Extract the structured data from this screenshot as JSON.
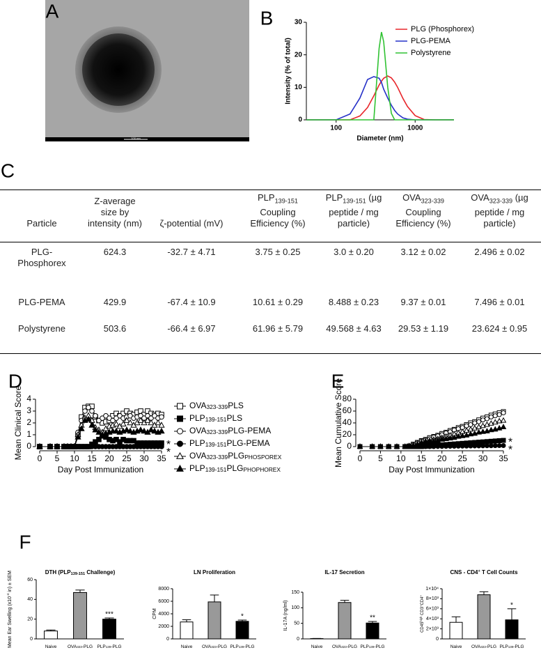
{
  "panel_labels": [
    "A",
    "B",
    "C",
    "D",
    "E",
    "F"
  ],
  "image_a": {
    "scale_bar": "100 nm"
  },
  "table": {
    "header": [
      [
        "Particle"
      ],
      [
        "Z-average size by intensity (nm)"
      ],
      [
        "ζ-potential (mV)"
      ],
      [
        "PLP",
        {
          "sub": "139-151"
        },
        " Coupling Efficiency (%)"
      ],
      [
        "PLP",
        {
          "sub": "139-151"
        },
        " (µg peptide / mg particle)"
      ],
      [
        "OVA",
        {
          "sub": "323-339"
        },
        " Coupling Efficiency (%)"
      ],
      [
        "OVA",
        {
          "sub": "323-339"
        },
        " (µg peptide / mg particle)"
      ]
    ],
    "rows": [
      [
        "PLG-Phosphorex",
        "624.3",
        "-32.7 ± 4.71",
        "3.75 ± 0.25",
        "3.0 ± 0.20",
        "3.12 ± 0.02",
        "2.496 ± 0.02"
      ],
      [
        "PLG-PEMA",
        "429.9",
        "-67.4 ± 10.9",
        "10.61 ± 0.29",
        "8.488 ± 0.23",
        "9.37 ± 0.01",
        "7.496 ± 0.01"
      ],
      [
        "Polystyrene",
        "503.6",
        "-66.4 ± 6.97",
        "61.96 ± 5.79",
        "49.568 ± 4.63",
        "29.53 ± 1.19",
        "23.624 ± 0.95"
      ]
    ]
  },
  "chart_data": [
    {
      "type": "line",
      "xlabel": "Diameter (nm)",
      "ylabel": "Intensity (% of total)",
      "xscale": "log",
      "xlim": [
        42,
        3100
      ],
      "xticks": [
        100,
        1000
      ],
      "ylim": [
        0,
        30
      ],
      "yticks": [
        0,
        10,
        20,
        30
      ],
      "legend": "top-right",
      "x": [
        42,
        100,
        150,
        200,
        250,
        300,
        350,
        375,
        400,
        450,
        500,
        550,
        600,
        700,
        800,
        1000,
        1300,
        1800,
        3100
      ],
      "series": [
        {
          "name": "PLG (Phosphorex)",
          "color": "#e8262b",
          "values": [
            0,
            0,
            0,
            1.2,
            3.8,
            7.4,
            10.7,
            11.9,
            12.8,
            13.5,
            12.9,
            11.6,
            10,
            6.6,
            4.1,
            1.3,
            0.1,
            0,
            0
          ]
        },
        {
          "name": "PLG-PEMA",
          "color": "#2530c8",
          "values": [
            0,
            0,
            1.8,
            6.7,
            12.4,
            13.3,
            12.8,
            11.5,
            9.4,
            6.7,
            4.5,
            2.9,
            1.8,
            0.6,
            0.2,
            0,
            0,
            0,
            0
          ]
        },
        {
          "name": "Polystyrene",
          "color": "#2fc232",
          "values": [
            0,
            0,
            0,
            0,
            0,
            0,
            22,
            27,
            24,
            10,
            2,
            0,
            0,
            0,
            0,
            0,
            0,
            0,
            0
          ]
        }
      ]
    },
    {
      "type": "line",
      "xlabel": "Day Post Immunization",
      "ylabel": "Mean Clinical Score",
      "xlim": [
        0,
        35
      ],
      "xticks": [
        0,
        5,
        10,
        15,
        20,
        25,
        30,
        35
      ],
      "ylim": [
        0,
        4
      ],
      "yticks": [
        0,
        1,
        2,
        3,
        4
      ],
      "legend": "right",
      "x": [
        0,
        3,
        5,
        7,
        8,
        9,
        10,
        11,
        12,
        13,
        14,
        15,
        16,
        17,
        18,
        19,
        20,
        21,
        22,
        23,
        24,
        25,
        26,
        27,
        28,
        29,
        30,
        31,
        32,
        33,
        34,
        35
      ],
      "series": [
        {
          "name": [
            "OVA",
            {
              "sub": "323-339"
            },
            "PLS"
          ],
          "color": "#000000",
          "marker": "square-open",
          "values": [
            0,
            0,
            0,
            0,
            0,
            0,
            0,
            1,
            2.5,
            3.3,
            3.4,
            3.4,
            2.5,
            2.2,
            2,
            2.1,
            2.2,
            2.6,
            2.8,
            2.6,
            2.8,
            3,
            2.8,
            2.7,
            2.9,
            3,
            2.7,
            3,
            2.8,
            2.7,
            2.8,
            2.7
          ]
        },
        {
          "name": [
            "PLP",
            {
              "sub": "139-151"
            },
            "PLS"
          ],
          "color": "#000000",
          "marker": "square-filled",
          "annotation": "*",
          "values": [
            0,
            0,
            0,
            0,
            0,
            0,
            0,
            0,
            0,
            0,
            0,
            0.2,
            0.4,
            0.6,
            0.9,
            0.8,
            0.6,
            0.5,
            0.6,
            0.4,
            0.6,
            0.5,
            0.5,
            0.5,
            0.3,
            0.3,
            0.3,
            0.3,
            0.3,
            0.3,
            0.3,
            0.3
          ]
        },
        {
          "name": [
            "OVA",
            {
              "sub": "323-339"
            },
            "PLG-PEMA"
          ],
          "color": "#000000",
          "marker": "circle-open",
          "values": [
            0,
            0,
            0,
            0,
            0,
            0,
            0,
            1.2,
            2.2,
            3,
            3.3,
            3,
            2.6,
            2.2,
            2.4,
            2.6,
            2.4,
            2.2,
            2.4,
            2.6,
            2.4,
            2.5,
            2.6,
            2.4,
            2.5,
            2.6,
            2.4,
            2.6,
            2.4,
            2.6,
            2.4,
            2.5
          ]
        },
        {
          "name": [
            "PLP",
            {
              "sub": "139-151"
            },
            "PLG-PEMA"
          ],
          "color": "#000000",
          "marker": "circle-filled",
          "annotation": "*",
          "values": [
            0,
            0,
            0,
            0,
            0,
            0,
            0,
            0,
            0,
            0,
            0,
            0,
            0,
            0,
            0,
            0,
            0,
            0,
            0,
            0,
            0,
            0,
            0,
            0,
            0,
            0,
            0,
            0,
            0,
            0,
            0,
            0
          ]
        },
        {
          "name": [
            "OVA",
            {
              "sub": "323-339"
            },
            "PLG",
            {
              "sub": "PHOSPOREX"
            }
          ],
          "color": "#000000",
          "marker": "triangle-open",
          "values": [
            0,
            0,
            0,
            0,
            0,
            0,
            0,
            1,
            1.8,
            2.4,
            2.6,
            2.2,
            1.6,
            1.4,
            1.2,
            1.5,
            1.7,
            1.8,
            1.9,
            1.7,
            1.9,
            2.2,
            2,
            1.8,
            2,
            2.2,
            2,
            2.2,
            2,
            1.8,
            2,
            1.8
          ]
        },
        {
          "name": [
            "PLP",
            {
              "sub": "139-151"
            },
            "PLG",
            {
              "sub": "PHOPHOREX"
            }
          ],
          "color": "#000000",
          "marker": "triangle-filled",
          "values": [
            0,
            0,
            0,
            0,
            0,
            0,
            0,
            0.8,
            1.5,
            2.2,
            2.3,
            1.8,
            1.4,
            1.2,
            1,
            1.1,
            1.2,
            1.3,
            1.3,
            1.2,
            1.3,
            1.4,
            1.3,
            1.2,
            1.3,
            1.4,
            1.3,
            1.2,
            1.4,
            1.3,
            1.2,
            1.3
          ]
        }
      ]
    },
    {
      "type": "line",
      "xlabel": "Day Post Immunization",
      "ylabel": "Mean Cumulative Score",
      "xlim": [
        0,
        35
      ],
      "xticks": [
        0,
        5,
        10,
        15,
        20,
        25,
        30,
        35
      ],
      "ylim": [
        0,
        80
      ],
      "yticks": [
        0,
        20,
        40,
        60,
        80
      ],
      "x": [
        0,
        3,
        5,
        7,
        9,
        11,
        12,
        13,
        14,
        15,
        16,
        17,
        18,
        19,
        20,
        21,
        22,
        23,
        24,
        25,
        26,
        27,
        28,
        29,
        30,
        31,
        32,
        33,
        34,
        35
      ],
      "series": [
        {
          "color": "#000000",
          "marker": "square-open",
          "values": [
            0,
            0,
            0,
            0,
            0,
            0,
            1,
            4,
            7,
            10,
            12,
            15,
            17,
            19,
            22,
            24,
            27,
            29,
            32,
            34,
            37,
            40,
            42,
            45,
            48,
            50,
            53,
            55,
            57,
            59
          ]
        },
        {
          "color": "#000000",
          "marker": "square-filled",
          "annotation": "*",
          "values": [
            0,
            0,
            0,
            0,
            0,
            0,
            0,
            0,
            0,
            0,
            0.5,
            1,
            2,
            2.5,
            3,
            3.5,
            4,
            4.5,
            5,
            5.5,
            6,
            6.5,
            7,
            7.5,
            8,
            8.5,
            9,
            9.5,
            10,
            10.5
          ]
        },
        {
          "color": "#000000",
          "marker": "circle-open",
          "values": [
            0,
            0,
            0,
            0,
            0,
            0,
            1,
            3,
            6,
            9,
            11,
            13,
            16,
            18,
            20,
            23,
            25,
            28,
            30,
            32,
            35,
            37,
            40,
            42,
            45,
            47,
            50,
            52,
            54,
            57
          ]
        },
        {
          "color": "#000000",
          "marker": "circle-filled",
          "annotation": "*",
          "values": [
            0,
            0,
            0,
            0,
            0,
            0,
            0,
            0,
            0,
            0,
            0,
            0,
            0,
            0.2,
            0.3,
            0.4,
            0.5,
            0.6,
            0.7,
            0.8,
            0.9,
            1,
            1.1,
            1.2,
            1.3,
            1.4,
            1.5,
            1.6,
            1.7,
            1.8
          ]
        },
        {
          "color": "#000000",
          "marker": "triangle-open",
          "values": [
            0,
            0,
            0,
            0,
            0,
            0,
            1,
            2,
            4,
            7,
            9,
            10,
            12,
            13,
            15,
            17,
            19,
            21,
            23,
            25,
            27,
            29,
            31,
            33,
            35,
            37,
            39,
            41,
            43,
            44
          ]
        },
        {
          "color": "#000000",
          "marker": "triangle-filled",
          "values": [
            0,
            0,
            0,
            0,
            0,
            0,
            1,
            2,
            4,
            5,
            7,
            8,
            9,
            10,
            12,
            13,
            14,
            15,
            17,
            18,
            19,
            21,
            22,
            24,
            25,
            26,
            28,
            29,
            31,
            33
          ]
        }
      ]
    },
    {
      "type": "bar",
      "title": [
        "DTH (PLP",
        {
          "sub": "139-151"
        },
        " Challenge)"
      ],
      "ylabel": [
        "Mean Ear Swelling (x10",
        {
          "sup": "-4"
        },
        " in) ± SEM"
      ],
      "categories": [
        [
          "Naive"
        ],
        [
          "OVA",
          {
            "sub": "323"
          },
          "-PLG"
        ],
        [
          "PLP",
          {
            "sub": "139"
          },
          "-PLG"
        ]
      ],
      "values": [
        8,
        47,
        20
      ],
      "errors": [
        1,
        2.5,
        1.2
      ],
      "colors": [
        "#ffffff",
        "#999999",
        "#000000"
      ],
      "significance": [
        null,
        null,
        "***"
      ],
      "ylim": [
        0,
        60
      ],
      "yticks": [
        0,
        20,
        40,
        60
      ]
    },
    {
      "type": "bar",
      "title": [
        "LN Proliferation"
      ],
      "ylabel": [
        "CPM"
      ],
      "categories": [
        [
          "Naive"
        ],
        [
          "OVA",
          {
            "sub": "323"
          },
          "-PLG"
        ],
        [
          "PLP",
          {
            "sub": "139"
          },
          "-PLG"
        ]
      ],
      "values": [
        2700,
        5900,
        2800
      ],
      "errors": [
        350,
        1100,
        200
      ],
      "colors": [
        "#ffffff",
        "#999999",
        "#000000"
      ],
      "significance": [
        null,
        null,
        "*"
      ],
      "ylim": [
        0,
        8000
      ],
      "yticks": [
        0,
        2000,
        4000,
        6000,
        8000
      ]
    },
    {
      "type": "bar",
      "title": [
        "IL-17 Secretion"
      ],
      "ylabel": [
        "IL-17A (ng/ml)"
      ],
      "categories": [
        [
          "Naive"
        ],
        [
          "OVA",
          {
            "sub": "323"
          },
          "-PLG"
        ],
        [
          "PLP",
          {
            "sub": "139"
          },
          "-PLG"
        ]
      ],
      "values": [
        1,
        117,
        51
      ],
      "errors": [
        0.5,
        7,
        5
      ],
      "colors": [
        "#ffffff",
        "#999999",
        "#000000"
      ],
      "significance": [
        null,
        null,
        "**"
      ],
      "ylim": [
        0,
        150
      ],
      "yticks": [
        0,
        50,
        100,
        150
      ]
    },
    {
      "type": "bar",
      "title": [
        "CNS - CD4",
        {
          "sup": "+"
        },
        " T Cell Counts"
      ],
      "ylabel": [
        "CD45",
        {
          "sup": "high"
        },
        " CD3",
        {
          "sup": "+"
        },
        "CD4",
        {
          "sup": "+"
        }
      ],
      "categories": [
        [
          "Naive"
        ],
        [
          "OVA",
          {
            "sub": "323"
          },
          "-PLG"
        ],
        [
          "PLP",
          {
            "sub": "139"
          },
          "-PLG"
        ]
      ],
      "values": [
        3300,
        8800,
        3800
      ],
      "errors": [
        1100,
        600,
        2200
      ],
      "colors": [
        "#ffffff",
        "#999999",
        "#000000"
      ],
      "significance": [
        null,
        null,
        "*"
      ],
      "ylim": [
        0,
        10000
      ],
      "yticks": [
        0,
        {
          "value": 2000,
          "label": "2×10³"
        },
        {
          "value": 4000,
          "label": "4×10³"
        },
        {
          "value": 6000,
          "label": "6×10³"
        },
        {
          "value": 8000,
          "label": "8×10³"
        },
        {
          "value": 10000,
          "label": "1×10⁴"
        }
      ]
    }
  ]
}
